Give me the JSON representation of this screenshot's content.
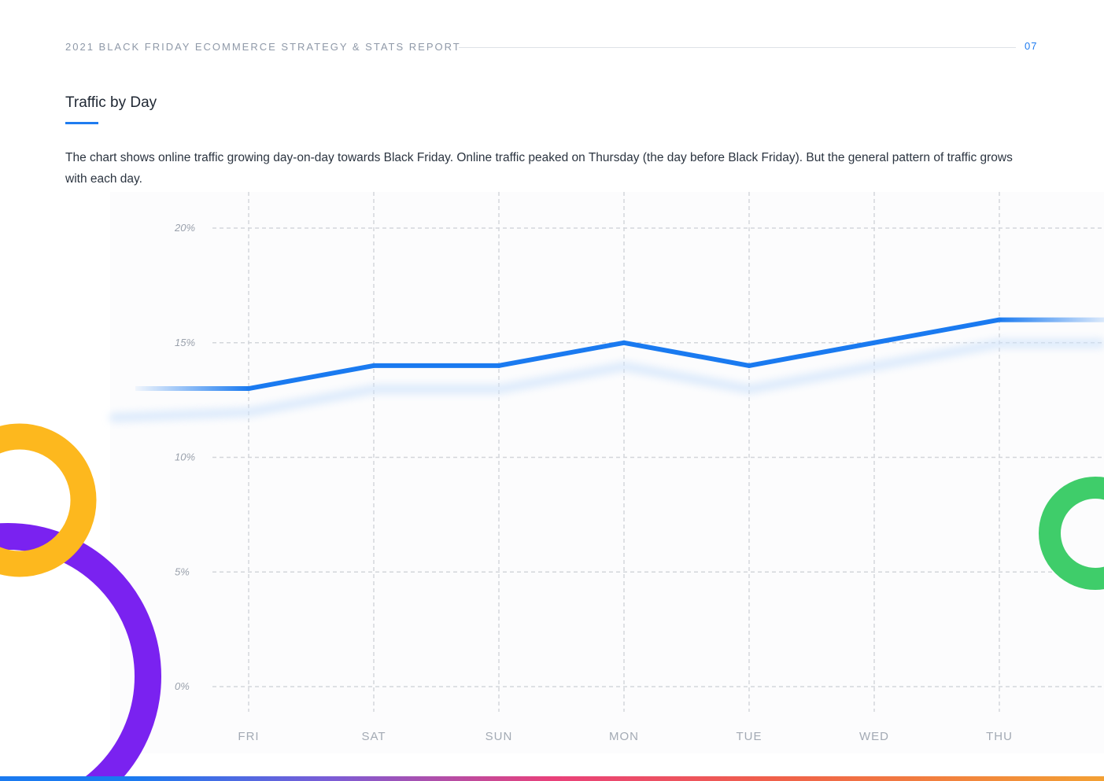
{
  "header": {
    "report_title": "2021 BLACK FRIDAY ECOMMERCE STRATEGY & STATS REPORT",
    "page_number": "07"
  },
  "section": {
    "title": "Traffic by Day",
    "description": "The chart shows online traffic growing day-on-day towards Black Friday. Online traffic peaked on Thursday (the day before Black Friday). But the general pattern of traffic grows with each day."
  },
  "colors": {
    "accent": "#1f7cf0",
    "line": "#1a7af0",
    "purple_ring": "#7a22f0",
    "yellow_ring": "#fdb81e",
    "green_ring": "#3fcd6a"
  },
  "chart_data": {
    "type": "line",
    "categories": [
      "FRI",
      "SAT",
      "SUN",
      "MON",
      "TUE",
      "WED",
      "THU"
    ],
    "values": [
      13,
      14,
      14,
      15,
      14,
      15,
      16
    ],
    "ylim": [
      0,
      20
    ],
    "yticks": [
      "0%",
      "5%",
      "10%",
      "15%",
      "20%"
    ],
    "grid": true,
    "xlabel": "",
    "ylabel": ""
  }
}
